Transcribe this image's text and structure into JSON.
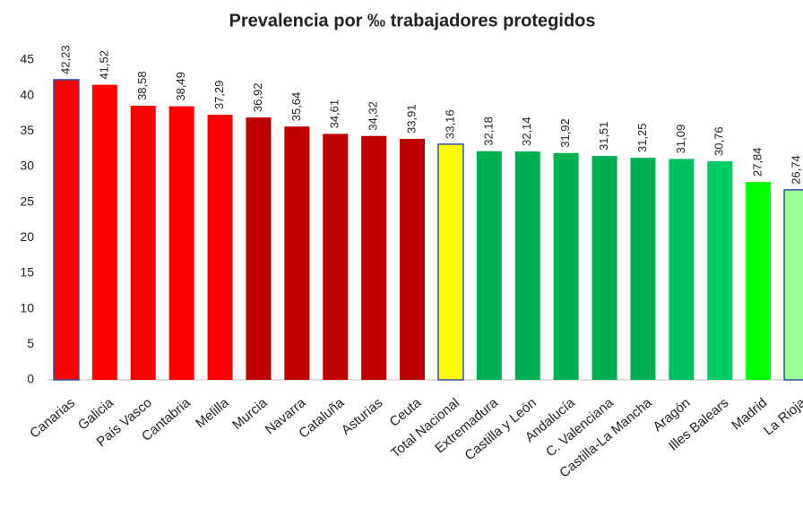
{
  "chart_data": {
    "type": "bar",
    "title": "Prevalencia por ‰ trabajadores protegidos",
    "categories": [
      "Canarias",
      "Galicia",
      "País Vasco",
      "Cantabria",
      "Melilla",
      "Murcia",
      "Navarra",
      "Cataluña",
      "Asturias",
      "Ceuta",
      "Total Nacional",
      "Extremadura",
      "Castilla y León",
      "Andalucía",
      "C. Valenciana",
      "Castilla-La Mancha",
      "Aragón",
      "Illes Balears",
      "Madrid",
      "La Rioja"
    ],
    "values": [
      42.23,
      41.52,
      38.58,
      38.49,
      37.29,
      36.92,
      35.64,
      34.61,
      34.32,
      33.91,
      33.16,
      32.18,
      32.14,
      31.92,
      31.51,
      31.25,
      31.09,
      30.76,
      27.84,
      26.74
    ],
    "value_labels": [
      "42,23",
      "41,52",
      "38,58",
      "38,49",
      "37,29",
      "36,92",
      "35,64",
      "34,61",
      "34,32",
      "33,91",
      "33,16",
      "32,18",
      "32,14",
      "31,92",
      "31,51",
      "31,25",
      "31,09",
      "30,76",
      "27,84",
      "26,74"
    ],
    "colors": [
      "#ff0000",
      "#ff0000",
      "#ff0000",
      "#ff0000",
      "#ff0000",
      "#c00000",
      "#c00000",
      "#c00000",
      "#c00000",
      "#c00000",
      "#ffff00",
      "#00b050",
      "#00b050",
      "#00b050",
      "#00b050",
      "#00b050",
      "#00c060",
      "#00cc66",
      "#00ff00",
      "#99ff99"
    ],
    "edgecolors": [
      "#2f4fa0",
      null,
      null,
      null,
      null,
      null,
      null,
      null,
      null,
      null,
      "#2f4fa0",
      null,
      null,
      null,
      null,
      null,
      null,
      null,
      null,
      "#2f4fa0"
    ],
    "ylim": [
      0,
      45
    ],
    "yticks": [
      0,
      5,
      10,
      15,
      20,
      25,
      30,
      35,
      40,
      45
    ],
    "grid": false
  }
}
